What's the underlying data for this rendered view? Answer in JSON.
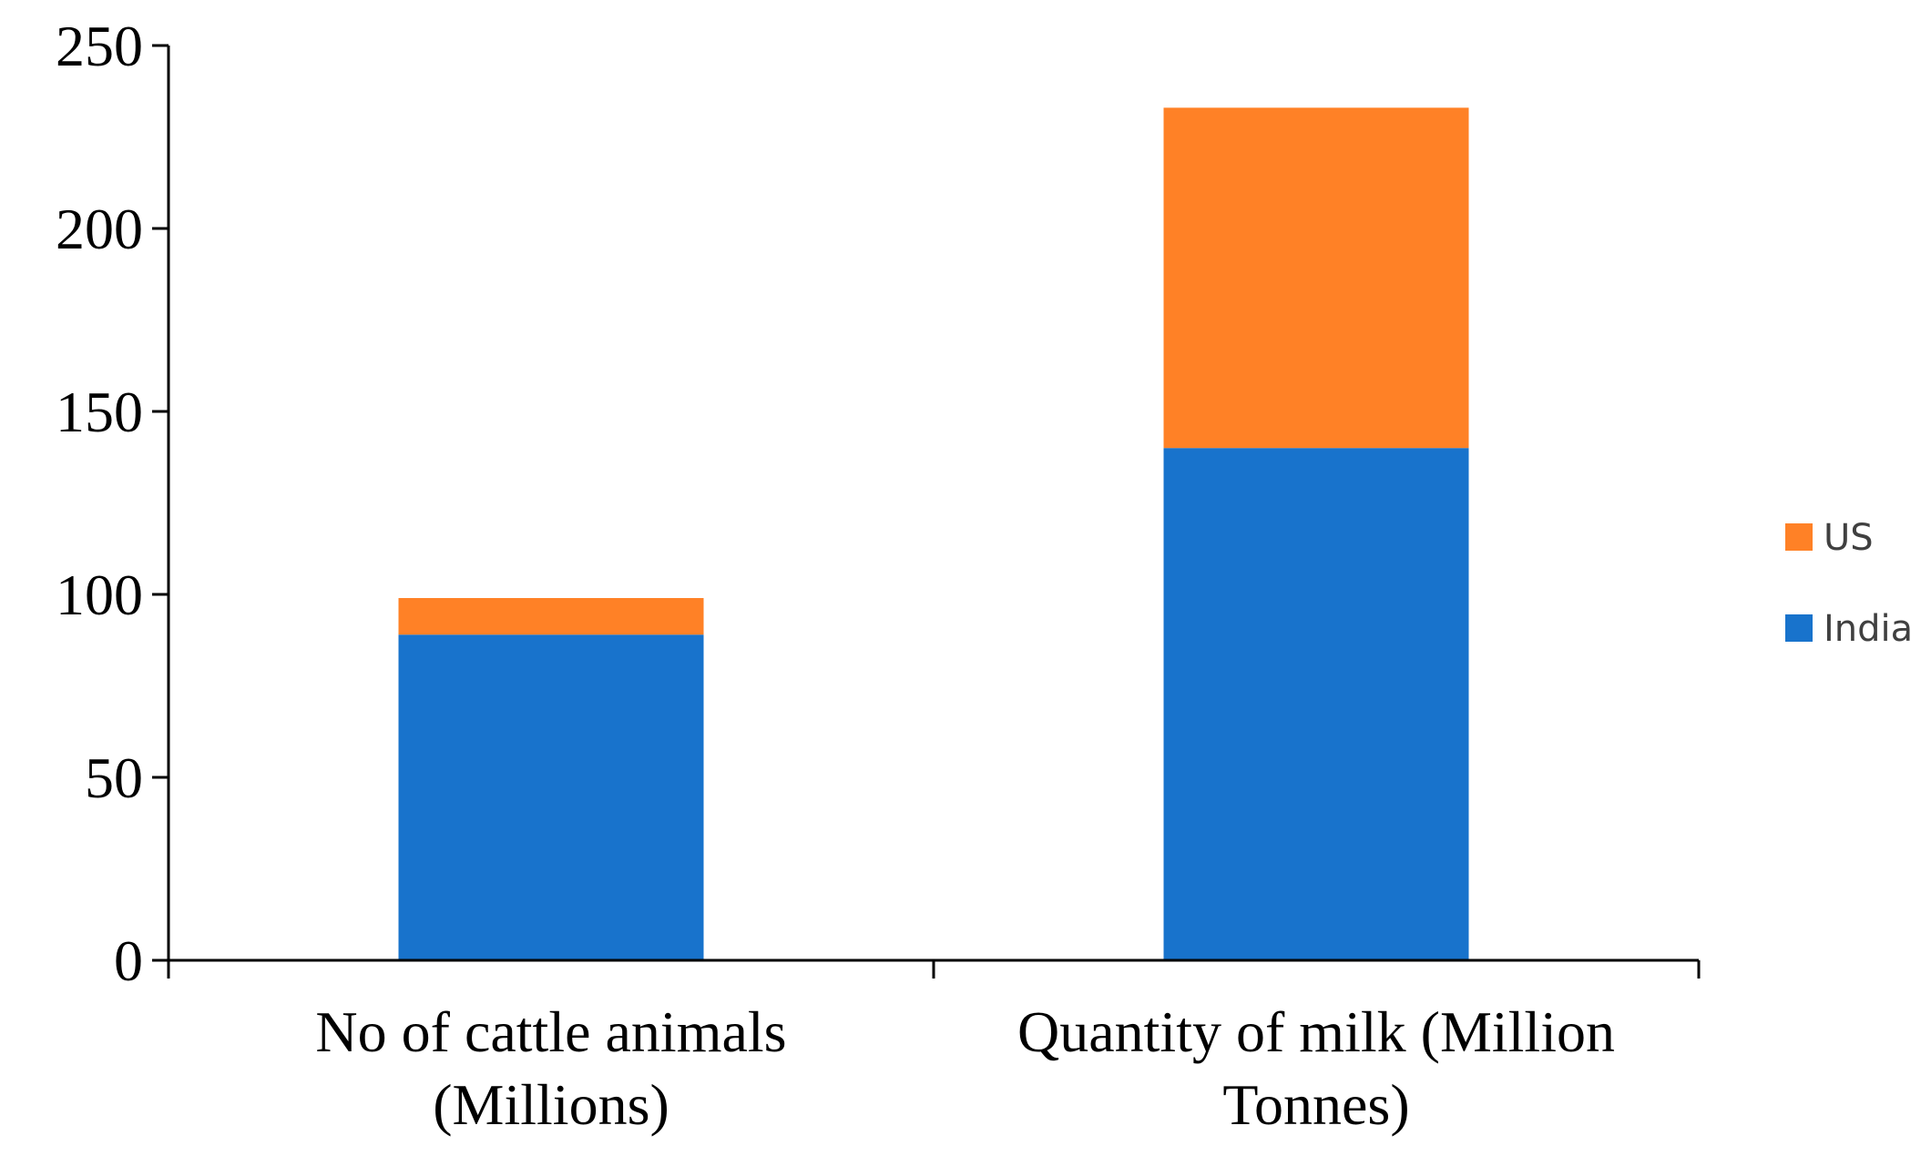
{
  "chart_data": {
    "type": "bar",
    "stacked": true,
    "title": "",
    "xlabel": "",
    "ylabel": "",
    "categories": [
      [
        "No of cattle animals",
        "(Millions)"
      ],
      [
        "Quantity of milk (Million",
        "Tonnes)"
      ]
    ],
    "series": [
      {
        "name": "India",
        "color": "#1873CC",
        "values": [
          89,
          140
        ]
      },
      {
        "name": "US",
        "color": "#FF8126",
        "values": [
          10,
          93
        ]
      }
    ],
    "ylim": [
      0,
      250
    ],
    "yticks": [
      0,
      50,
      100,
      150,
      200,
      250
    ],
    "grid": false,
    "legend": {
      "position": "right",
      "order": [
        "US",
        "India"
      ]
    }
  }
}
